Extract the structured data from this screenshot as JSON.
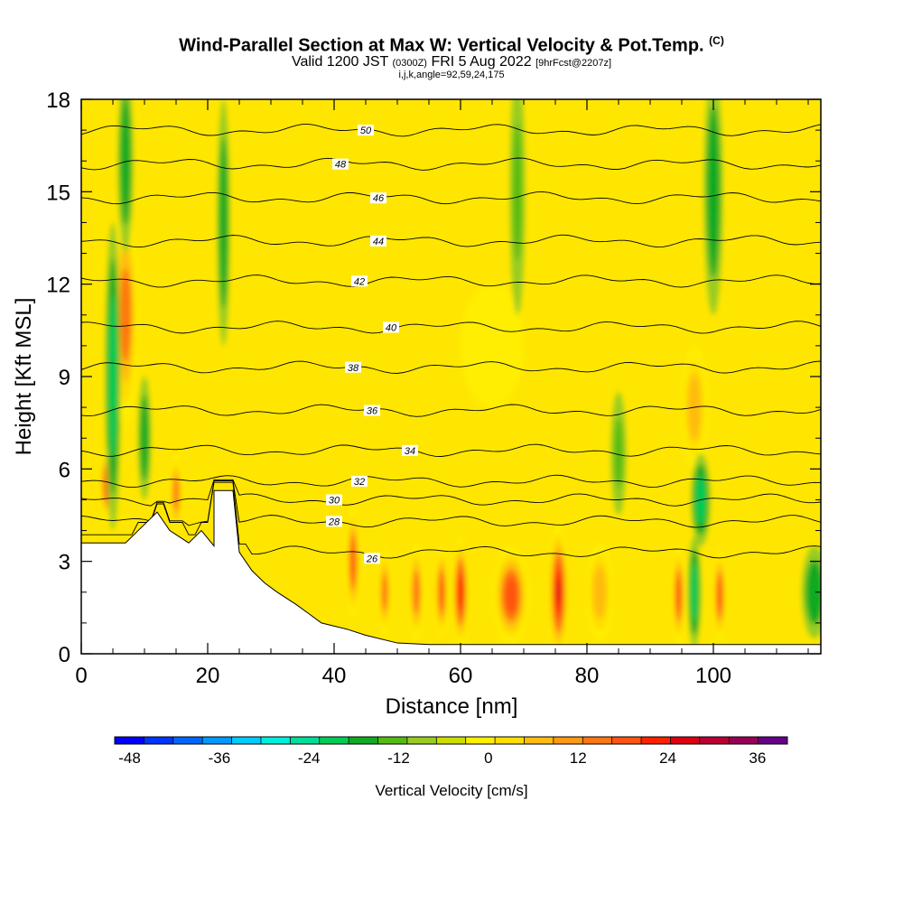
{
  "header": {
    "title": "Wind-Parallel Section at Max W: Vertical Velocity & Pot.Temp.",
    "copyright": "(C)",
    "valid_prefix": "Valid 1200 JST",
    "valid_utc": "(0300Z)",
    "valid_date": "FRI 5 Aug 2022",
    "forecast": "[9hrFcst@2207z]",
    "indices": "i,j,k,angle=92,59,24,175"
  },
  "chart_data": {
    "type": "heatmap",
    "title": "Wind-Parallel Section at Max W: Vertical Velocity & Pot.Temp.",
    "xlabel": "Distance [nm]",
    "ylabel": "Height [Kft MSL]",
    "xlim": [
      0,
      117
    ],
    "ylim": [
      0,
      18
    ],
    "x_ticks": [
      "0",
      "20",
      "40",
      "60",
      "80",
      "100"
    ],
    "y_ticks": [
      "0",
      "3",
      "6",
      "9",
      "12",
      "15",
      "18"
    ],
    "colorbar": {
      "label": "Vertical Velocity [cm/s]",
      "min": -50,
      "max": 40,
      "step": 4.5,
      "tick_labels": [
        "-48",
        "-36",
        "-24",
        "-12",
        "0",
        "12",
        "24",
        "36"
      ],
      "tick_values": [
        -48,
        -36,
        -24,
        -12,
        0,
        12,
        24,
        36
      ],
      "colors": [
        "#0000ff",
        "#0033ff",
        "#0066ff",
        "#0099ff",
        "#00ccff",
        "#00eedd",
        "#00dd99",
        "#00cc55",
        "#11aa22",
        "#55bb11",
        "#99cc22",
        "#ccdd00",
        "#ffee00",
        "#ffdd00",
        "#ffbb11",
        "#ff9911",
        "#ff7711",
        "#ff5511",
        "#ff2200",
        "#dd0011",
        "#bb0033",
        "#990055",
        "#660088"
      ]
    },
    "terrain_kft": [
      [
        0,
        3.6
      ],
      [
        7,
        3.6
      ],
      [
        9,
        4.0
      ],
      [
        12,
        4.6
      ],
      [
        14,
        4.0
      ],
      [
        17,
        3.6
      ],
      [
        19,
        4.0
      ],
      [
        21,
        3.5
      ],
      [
        21,
        5.3
      ],
      [
        24,
        5.3
      ],
      [
        25,
        3.3
      ],
      [
        27,
        2.7
      ],
      [
        29,
        2.3
      ],
      [
        31,
        2.0
      ],
      [
        34,
        1.6
      ],
      [
        36,
        1.3
      ],
      [
        38,
        1.0
      ],
      [
        42,
        0.8
      ],
      [
        45,
        0.6
      ],
      [
        50,
        0.35
      ],
      [
        55,
        0.3
      ],
      [
        117,
        0.3
      ]
    ],
    "theta_contours": [
      {
        "label": "26",
        "base": 3.3,
        "lx": 46,
        "ly": 3.1
      },
      {
        "label": "28",
        "base": 4.3,
        "lx": 40,
        "ly": 4.3
      },
      {
        "label": "30",
        "base": 5.0,
        "lx": 40,
        "ly": 5.0
      },
      {
        "label": "32",
        "base": 5.6,
        "lx": 44,
        "ly": 5.6
      },
      {
        "label": "34",
        "base": 6.6,
        "lx": 52,
        "ly": 6.6
      },
      {
        "label": "36",
        "base": 7.9,
        "lx": 46,
        "ly": 7.9
      },
      {
        "label": "38",
        "base": 9.3,
        "lx": 43,
        "ly": 9.3
      },
      {
        "label": "40",
        "base": 10.6,
        "lx": 49,
        "ly": 10.6
      },
      {
        "label": "42",
        "base": 12.1,
        "lx": 44,
        "ly": 12.1
      },
      {
        "label": "44",
        "base": 13.4,
        "lx": 47,
        "ly": 13.4
      },
      {
        "label": "46",
        "base": 14.8,
        "lx": 47,
        "ly": 14.8
      },
      {
        "label": "48",
        "base": 15.9,
        "lx": 41,
        "ly": 15.9
      },
      {
        "label": "50",
        "base": 17.0,
        "lx": 45,
        "ly": 17.0
      }
    ],
    "updrafts": [
      {
        "x": 4,
        "y": 5.5,
        "w": 1.0,
        "h": 1.2,
        "v": 30
      },
      {
        "x": 7,
        "y": 11,
        "w": 2.0,
        "h": 3.5,
        "v": 24
      },
      {
        "x": 15,
        "y": 5.2,
        "w": 1.0,
        "h": 1.3,
        "v": 26
      },
      {
        "x": 43,
        "y": 3.0,
        "w": 1.0,
        "h": 1.8,
        "v": 28
      },
      {
        "x": 48,
        "y": 2.0,
        "w": 1.0,
        "h": 1.4,
        "v": 22
      },
      {
        "x": 53,
        "y": 2.0,
        "w": 1.2,
        "h": 1.6,
        "v": 26
      },
      {
        "x": 57,
        "y": 2.0,
        "w": 1.0,
        "h": 1.5,
        "v": 28
      },
      {
        "x": 60,
        "y": 2.0,
        "w": 1.3,
        "h": 1.8,
        "v": 34
      },
      {
        "x": 68,
        "y": 1.9,
        "w": 2.8,
        "h": 1.6,
        "v": 30
      },
      {
        "x": 75.5,
        "y": 2.0,
        "w": 1.6,
        "h": 2.2,
        "v": 38
      },
      {
        "x": 82,
        "y": 2.0,
        "w": 2.0,
        "h": 1.6,
        "v": 16
      },
      {
        "x": 94.5,
        "y": 1.9,
        "w": 1.0,
        "h": 1.6,
        "v": 30
      },
      {
        "x": 101,
        "y": 1.9,
        "w": 1.0,
        "h": 1.5,
        "v": 30
      },
      {
        "x": 97,
        "y": 8.0,
        "w": 2.0,
        "h": 2.0,
        "v": 16
      },
      {
        "x": 65,
        "y": 10.0,
        "w": 5.0,
        "h": 2.0,
        "v": 8
      }
    ],
    "downdrafts": [
      {
        "x": 5,
        "y": 9,
        "w": 1.2,
        "h": 5,
        "v": -18
      },
      {
        "x": 7,
        "y": 16,
        "w": 1.2,
        "h": 3,
        "v": -14
      },
      {
        "x": 22.5,
        "y": 14,
        "w": 1.0,
        "h": 4,
        "v": -14
      },
      {
        "x": 10,
        "y": 7,
        "w": 1.0,
        "h": 2,
        "v": -12
      },
      {
        "x": 98,
        "y": 5,
        "w": 1.5,
        "h": 1.5,
        "v": -16
      },
      {
        "x": 100,
        "y": 15,
        "w": 1.5,
        "h": 4,
        "v": -12
      },
      {
        "x": 97,
        "y": 2,
        "w": 1.0,
        "h": 1.8,
        "v": -16
      },
      {
        "x": 116,
        "y": 2.0,
        "w": 2.0,
        "h": 1.5,
        "v": -14
      },
      {
        "x": 85,
        "y": 6.5,
        "w": 1.2,
        "h": 2,
        "v": -8
      },
      {
        "x": 69,
        "y": 15,
        "w": 1.2,
        "h": 4,
        "v": -6
      }
    ]
  }
}
